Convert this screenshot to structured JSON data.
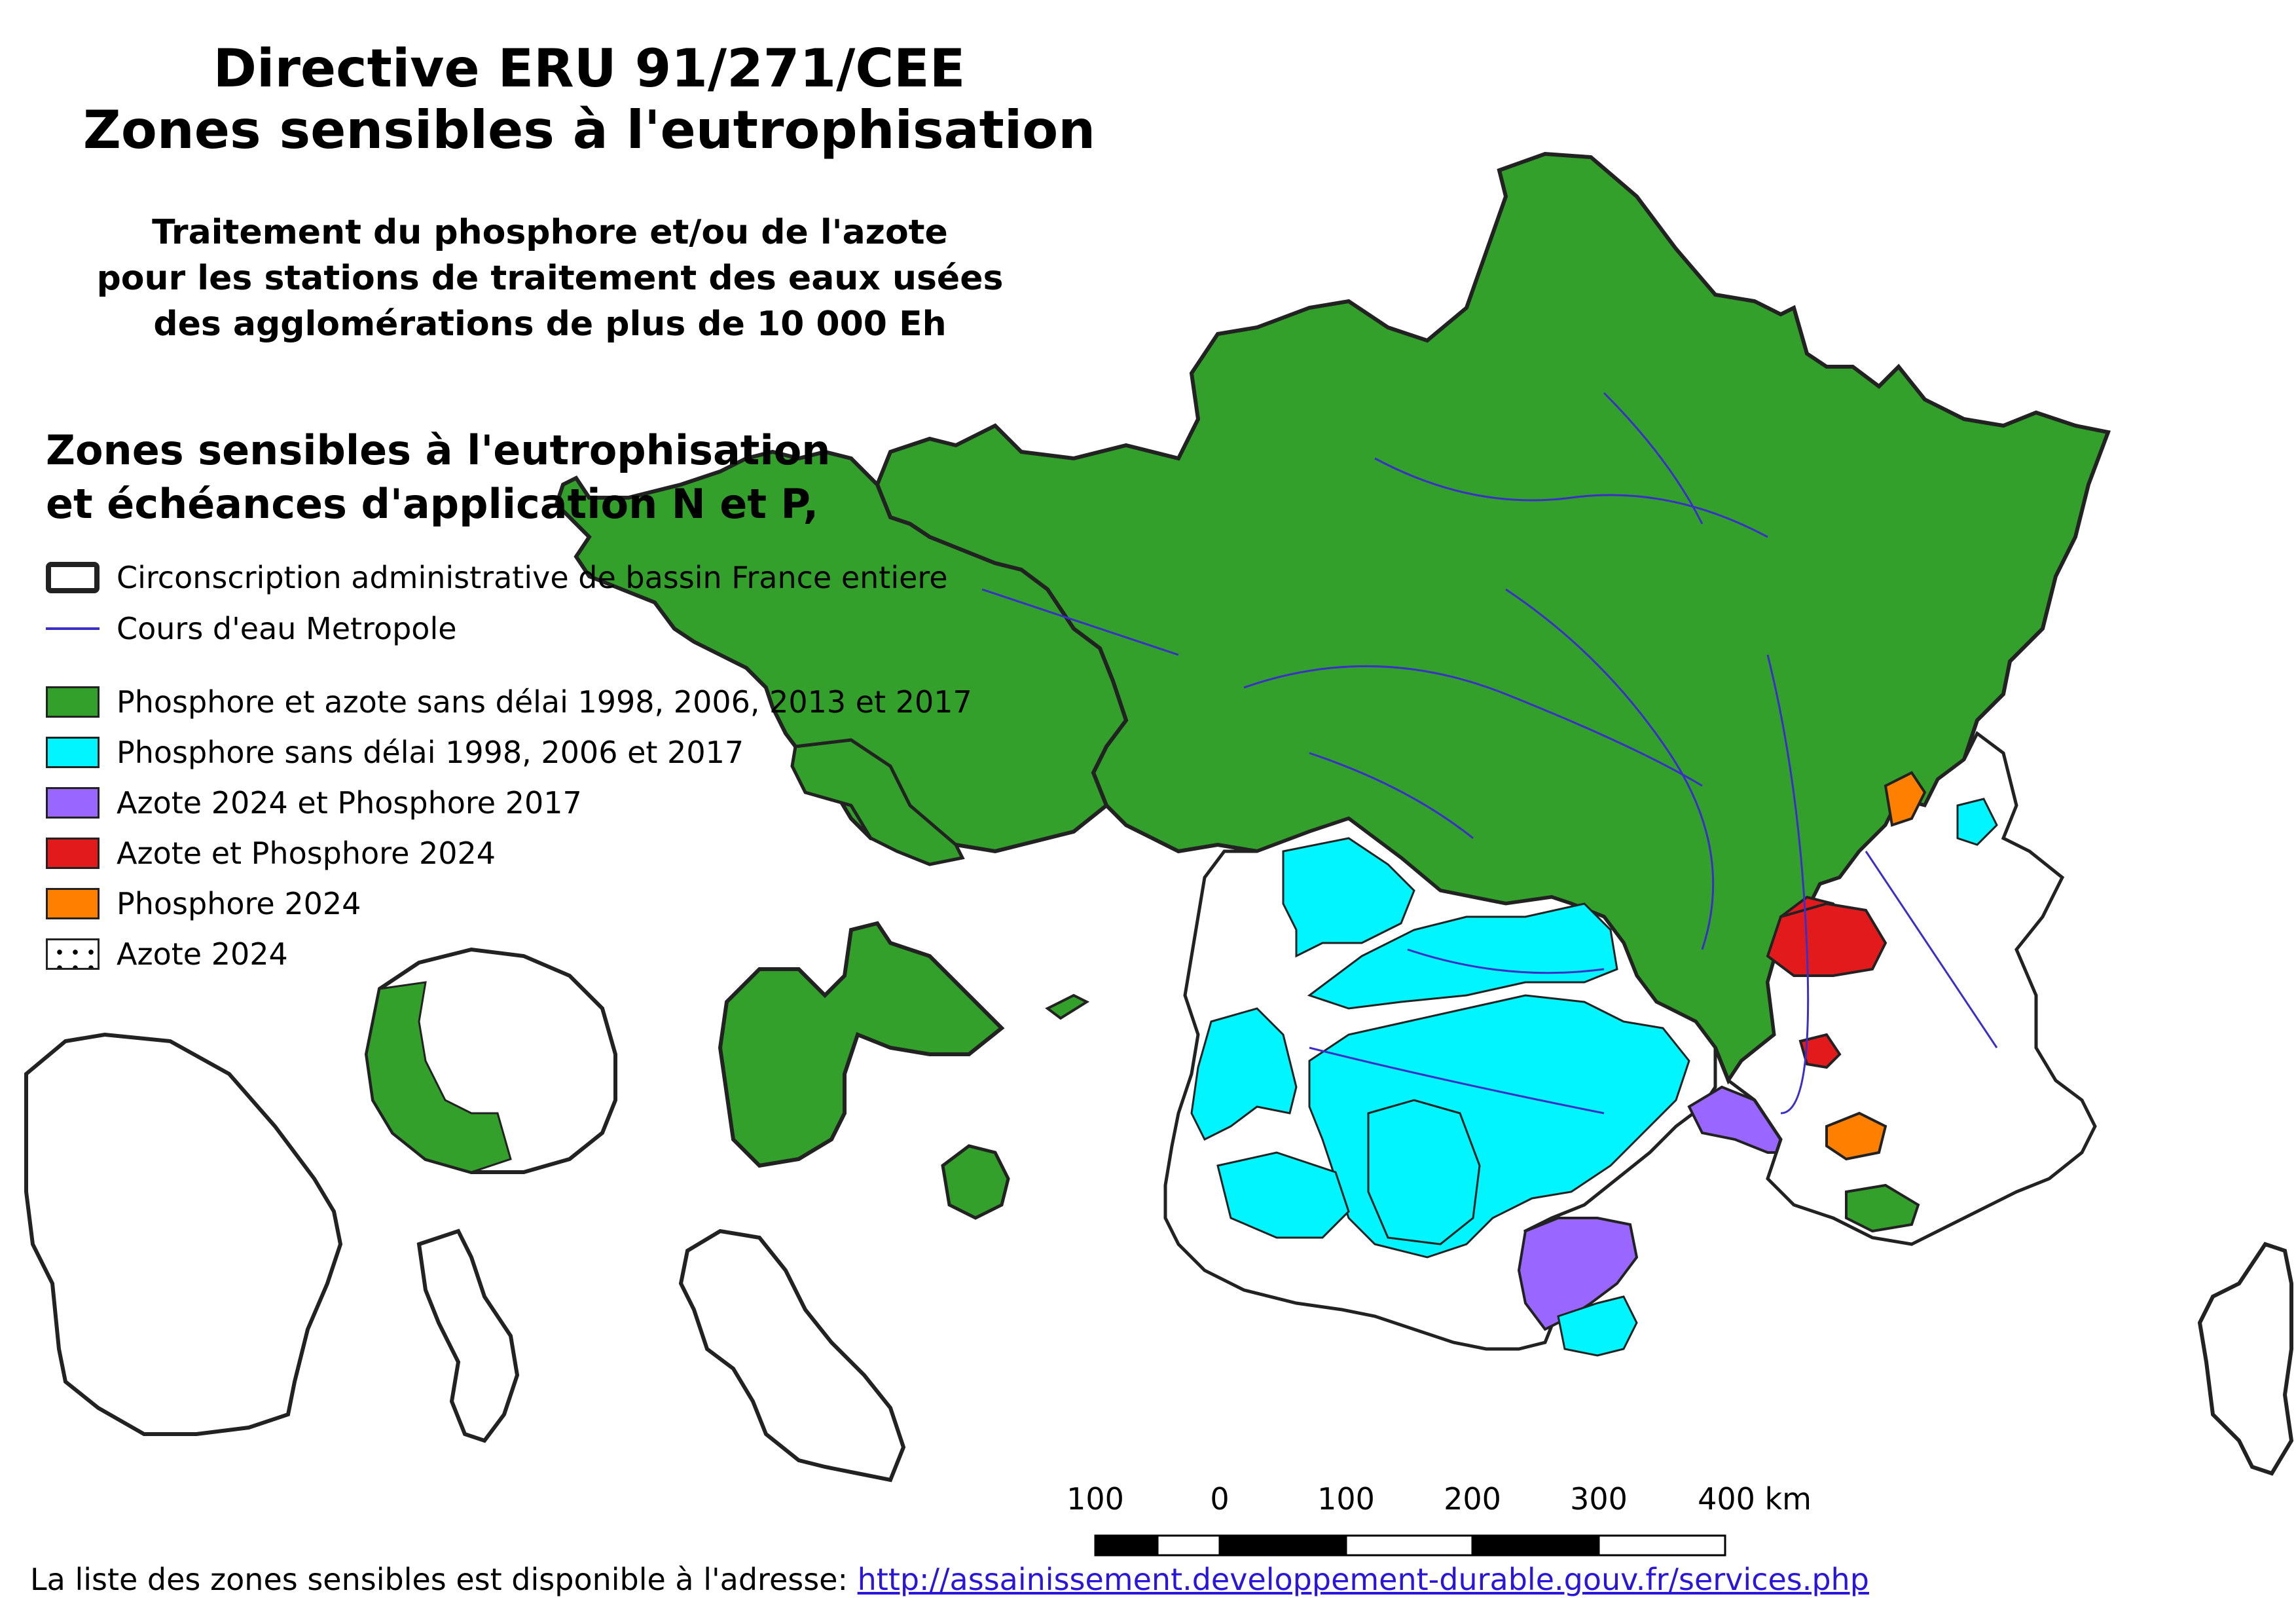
{
  "title": {
    "line1": "Directive ERU 91/271/CEE",
    "line2": "Zones sensibles à l'eutrophisation"
  },
  "subtitle": {
    "line1": "Traitement du phosphore et/ou de l'azote",
    "line2": "pour les stations de traitement des eaux usées",
    "line3": "des agglomérations de plus de 10 000 Eh"
  },
  "legend": {
    "heading_line1": "Zones sensibles à l'eutrophisation",
    "heading_line2": "et échéances d'application N et P,",
    "items": [
      {
        "label": "Circonscription administrative de bassin France entiere",
        "symbol": "basin-outline",
        "color": "#222222"
      },
      {
        "label": "Cours d'eau Metropole",
        "symbol": "river-line",
        "color": "#3b2ec9"
      },
      {
        "label": "Phosphore et azote sans délai 1998, 2006, 2013 et 2017",
        "symbol": "fill",
        "color": "#33a02c"
      },
      {
        "label": "Phosphore sans délai 1998, 2006 et 2017",
        "symbol": "fill",
        "color": "#00f5ff"
      },
      {
        "label": "Azote 2024 et Phosphore 2017",
        "symbol": "fill",
        "color": "#9966ff"
      },
      {
        "label": "Azote et Phosphore 2024",
        "symbol": "fill",
        "color": "#e31a1c"
      },
      {
        "label": "Phosphore 2024",
        "symbol": "fill",
        "color": "#ff8000"
      },
      {
        "label": "Azote 2024",
        "symbol": "dots",
        "color": "#000000"
      }
    ]
  },
  "scale_bar": {
    "labels": [
      "100",
      "0",
      "100",
      "200",
      "300",
      "400 km"
    ]
  },
  "footer": {
    "text": "La liste des zones sensibles est disponible à l'adresse:",
    "link": "http://assainissement.developpement-durable.gouv.fr/services.php"
  }
}
